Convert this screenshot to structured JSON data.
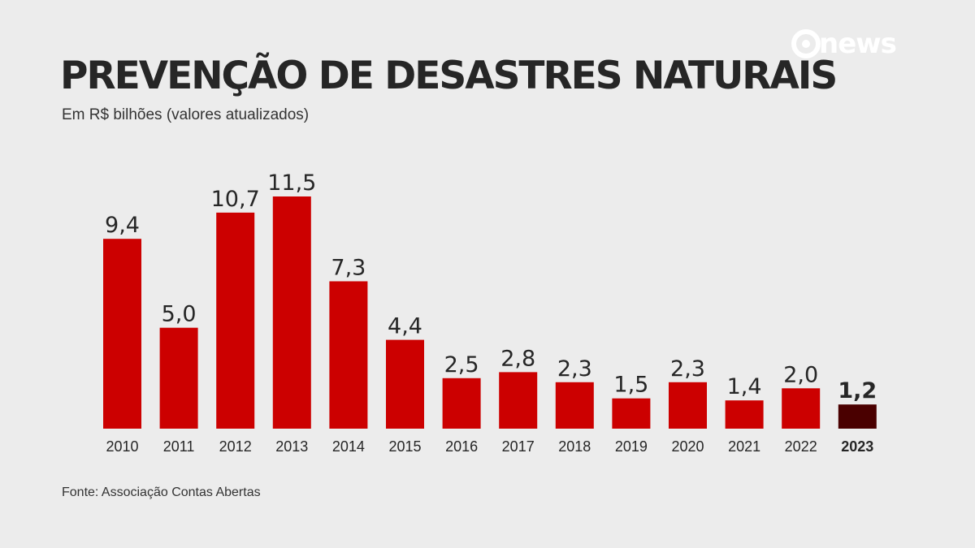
{
  "brand": {
    "logo_text": "news",
    "logo_color": "#ffffff"
  },
  "colors": {
    "bar": "#cc0000",
    "bar_highlight": "#4a0000",
    "background": "#ececec",
    "text": "#262626"
  },
  "chart_data": {
    "type": "bar",
    "title": "PREVENÇÃO DE DESASTRES NATURAIS",
    "subtitle": "Em R$ bilhões (valores atualizados)",
    "source": "Fonte: Associação Contas Abertas",
    "categories": [
      "2010",
      "2011",
      "2012",
      "2013",
      "2014",
      "2015",
      "2016",
      "2017",
      "2018",
      "2019",
      "2020",
      "2021",
      "2022",
      "2023"
    ],
    "values": [
      9.4,
      5.0,
      10.7,
      11.5,
      7.3,
      4.4,
      2.5,
      2.8,
      2.3,
      1.5,
      2.3,
      1.4,
      2.0,
      1.2
    ],
    "value_labels": [
      "9,4",
      "5,0",
      "10,7",
      "11,5",
      "7,3",
      "4,4",
      "2,5",
      "2,8",
      "2,3",
      "1,5",
      "2,3",
      "1,4",
      "2,0",
      "1,2"
    ],
    "highlight_category": "2023",
    "xlabel": "",
    "ylabel": "",
    "ylim": [
      0,
      11.5
    ],
    "grid": false,
    "legend": "none"
  }
}
